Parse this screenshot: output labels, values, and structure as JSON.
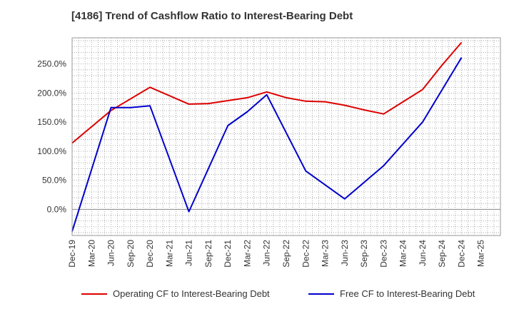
{
  "title": "[4186]  Trend of Cashflow Ratio to Interest-Bearing Debt",
  "colors": {
    "operating": "#dd0000",
    "free": "#0000cc",
    "grid": "#999999",
    "zero_line": "#888888"
  },
  "chart_data": {
    "type": "line",
    "title": "[4186]  Trend of Cashflow Ratio to Interest-Bearing Debt",
    "xlabel": "",
    "ylabel": "",
    "x": [
      "Dec-19",
      "Mar-20",
      "Jun-20",
      "Sep-20",
      "Dec-20",
      "Mar-21",
      "Jun-21",
      "Sep-21",
      "Dec-21",
      "Mar-22",
      "Jun-22",
      "Sep-22",
      "Dec-22",
      "Mar-23",
      "Jun-23",
      "Sep-23",
      "Dec-23",
      "Mar-24",
      "Jun-24",
      "Sep-24",
      "Dec-24",
      "Mar-25"
    ],
    "ylim": [
      -45,
      295
    ],
    "yticks": [
      0,
      50,
      100,
      150,
      200,
      250
    ],
    "ytick_labels": [
      "0.0%",
      "50.0%",
      "100.0%",
      "150.0%",
      "200.0%",
      "250.0%"
    ],
    "grid": true,
    "legend_position": "bottom",
    "series": [
      {
        "name": "Operating CF to Interest-Bearing Debt",
        "color": "#dd0000",
        "points": [
          [
            0,
            114
          ],
          [
            2,
            170
          ],
          [
            4,
            210
          ],
          [
            6,
            181
          ],
          [
            7,
            182
          ],
          [
            8,
            187
          ],
          [
            9,
            192
          ],
          [
            10,
            202
          ],
          [
            11,
            192
          ],
          [
            12,
            186
          ],
          [
            13,
            185
          ],
          [
            14,
            179
          ],
          [
            15,
            171
          ],
          [
            16,
            164
          ],
          [
            17,
            185
          ],
          [
            18,
            206
          ],
          [
            19,
            248
          ],
          [
            20,
            287
          ]
        ]
      },
      {
        "name": "Free CF to Interest-Bearing Debt",
        "color": "#0000cc",
        "points": [
          [
            0,
            -38
          ],
          [
            2,
            175
          ],
          [
            3,
            175
          ],
          [
            4,
            178
          ],
          [
            6,
            -4
          ],
          [
            8,
            144
          ],
          [
            9,
            168
          ],
          [
            10,
            197
          ],
          [
            12,
            66
          ],
          [
            14,
            18
          ],
          [
            16,
            75
          ],
          [
            18,
            150
          ],
          [
            20,
            261
          ]
        ]
      }
    ]
  },
  "legend": [
    {
      "label": "Operating CF to Interest-Bearing Debt",
      "color": "#dd0000"
    },
    {
      "label": "Free CF to Interest-Bearing Debt",
      "color": "#0000cc"
    }
  ]
}
